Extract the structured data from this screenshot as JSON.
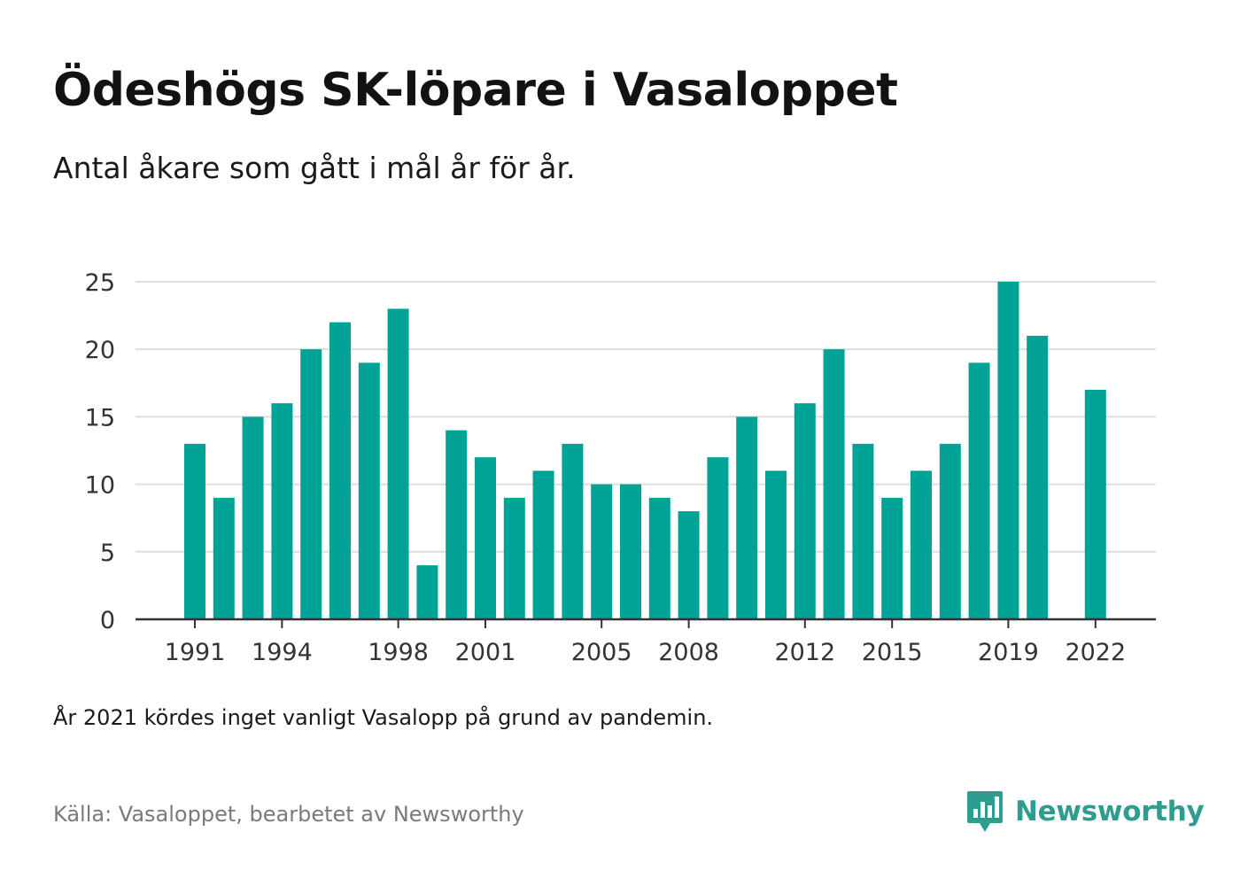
{
  "header": {
    "title": "Ödeshögs SK-löpare i Vasaloppet",
    "subtitle": "Antal åkare som gått i mål år för år."
  },
  "footer": {
    "note": "År 2021 kördes inget vanligt Vasalopp på grund av pandemin.",
    "source": "Källa: Vasaloppet, bearbetet av Newsworthy",
    "brand_name": "Newsworthy",
    "brand_icon": "newsworthy-logo-icon"
  },
  "colors": {
    "bar": "#00a396",
    "grid": "#dddddd",
    "axis": "#333333",
    "brand": "#2e9c8e"
  },
  "chart_data": {
    "type": "bar",
    "title": "Ödeshögs SK-löpare i Vasaloppet",
    "subtitle": "Antal åkare som gått i mål år för år.",
    "xlabel": "",
    "ylabel": "",
    "ylim": [
      0,
      25
    ],
    "yticks": [
      0,
      5,
      10,
      15,
      20,
      25
    ],
    "xticks": [
      "1991",
      "1994",
      "1998",
      "2001",
      "2005",
      "2008",
      "2012",
      "2015",
      "2019",
      "2022"
    ],
    "grid": true,
    "legend": "none",
    "categories": [
      1991,
      1992,
      1993,
      1994,
      1995,
      1996,
      1997,
      1998,
      1999,
      2000,
      2001,
      2002,
      2003,
      2004,
      2005,
      2006,
      2007,
      2008,
      2009,
      2010,
      2011,
      2012,
      2013,
      2014,
      2015,
      2016,
      2017,
      2018,
      2019,
      2020,
      2021,
      2022
    ],
    "values": [
      13,
      9,
      15,
      16,
      20,
      22,
      19,
      23,
      4,
      14,
      12,
      9,
      11,
      13,
      10,
      10,
      9,
      8,
      12,
      15,
      11,
      16,
      20,
      13,
      9,
      11,
      13,
      19,
      25,
      21,
      null,
      17
    ]
  }
}
